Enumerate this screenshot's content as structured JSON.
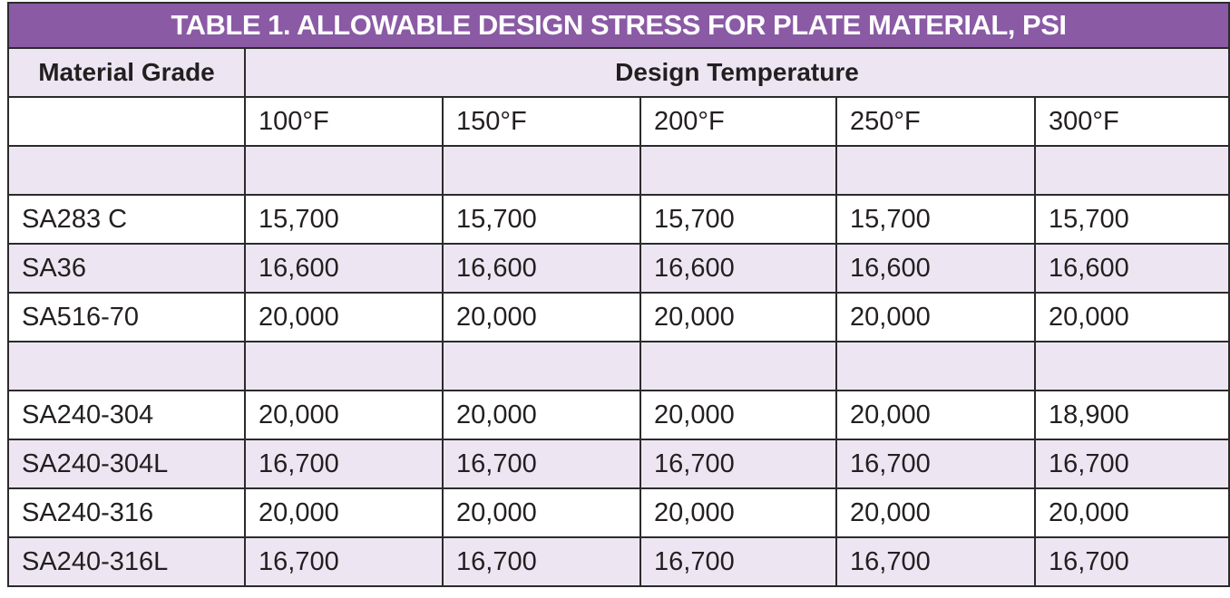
{
  "table": {
    "title": "TABLE 1. ALLOWABLE DESIGN STRESS FOR PLATE MATERIAL, PSI",
    "header_material": "Material Grade",
    "header_design": "Design Temperature",
    "temperatures": [
      "100°F",
      "150°F",
      "200°F",
      "250°F",
      "300°F"
    ],
    "group1": [
      {
        "grade": "SA283 C",
        "values": [
          "15,700",
          "15,700",
          "15,700",
          "15,700",
          "15,700"
        ]
      },
      {
        "grade": "SA36",
        "values": [
          "16,600",
          "16,600",
          "16,600",
          "16,600",
          "16,600"
        ]
      },
      {
        "grade": "SA516-70",
        "values": [
          "20,000",
          "20,000",
          "20,000",
          "20,000",
          "20,000"
        ]
      }
    ],
    "group2": [
      {
        "grade": "SA240-304",
        "values": [
          "20,000",
          "20,000",
          "20,000",
          "20,000",
          "18,900"
        ]
      },
      {
        "grade": "SA240-304L",
        "values": [
          "16,700",
          "16,700",
          "16,700",
          "16,700",
          "16,700"
        ]
      },
      {
        "grade": "SA240-316",
        "values": [
          "20,000",
          "20,000",
          "20,000",
          "20,000",
          "20,000"
        ]
      },
      {
        "grade": "SA240-316L",
        "values": [
          "16,700",
          "16,700",
          "16,700",
          "16,700",
          "16,700"
        ]
      }
    ]
  },
  "colors": {
    "title_bg": "#8a5aa5",
    "stripe_bg": "#ede6f2",
    "border": "#2b2b2b"
  }
}
